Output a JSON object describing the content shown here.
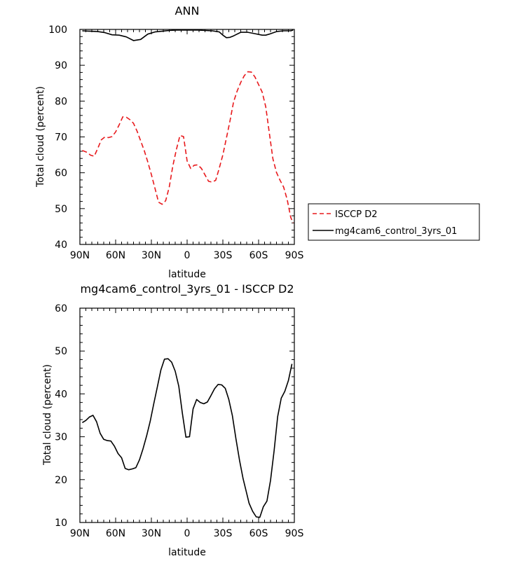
{
  "chart_data": [
    {
      "type": "line",
      "title": "ANN",
      "xlabel": "latitude",
      "ylabel": "Total cloud (percent)",
      "xlim": [
        90,
        -90
      ],
      "ylim": [
        40,
        100
      ],
      "xticks": [
        90,
        60,
        30,
        0,
        -30,
        -60,
        -90
      ],
      "xtick_labels": [
        "90N",
        "60N",
        "30N",
        "0",
        "30S",
        "60S",
        "90S"
      ],
      "yticks": [
        40,
        50,
        60,
        70,
        80,
        90,
        100
      ],
      "ytick_labels": [
        "40",
        "50",
        "60",
        "70",
        "80",
        "90",
        "100"
      ],
      "legend_position": "right",
      "series": [
        {
          "name": "ISCCP D2",
          "color": "#e8191c",
          "dash": "dashed",
          "x": [
            88,
            84,
            81,
            78,
            75,
            72,
            69,
            66,
            63,
            60,
            57,
            54,
            51,
            48,
            45,
            42,
            39,
            36,
            33,
            30,
            27,
            24,
            21,
            18,
            15,
            12,
            9,
            6,
            3,
            0,
            -3,
            -6,
            -9,
            -12,
            -15,
            -18,
            -21,
            -24,
            -27,
            -30,
            -33,
            -36,
            -39,
            -42,
            -45,
            -48,
            -51,
            -54,
            -57,
            -60,
            -63,
            -66,
            -69,
            -72,
            -75,
            -78,
            -81,
            -84,
            -87,
            -89
          ],
          "y": [
            66.2,
            65.7,
            64.9,
            64.6,
            66.8,
            69.2,
            70.0,
            69.8,
            70.1,
            71.4,
            73.4,
            75.6,
            75.5,
            74.8,
            73.8,
            71.6,
            68.9,
            66.2,
            63.0,
            59.5,
            55.7,
            51.8,
            51.2,
            52.2,
            56.0,
            61.9,
            66.5,
            70.4,
            70.1,
            63.3,
            61.2,
            62.1,
            62.2,
            61.2,
            59.4,
            57.6,
            57.4,
            57.9,
            61.3,
            65.0,
            69.7,
            74.5,
            79.8,
            82.8,
            85.2,
            87.1,
            88.2,
            88.1,
            86.7,
            84.6,
            82.5,
            78.4,
            71.1,
            63.9,
            60.1,
            57.9,
            56.0,
            52.5,
            47.5,
            46.0
          ]
        },
        {
          "name": "mg4cam6_control_3yrs_01",
          "color": "#000000",
          "dash": "solid",
          "x": [
            88,
            81,
            75,
            69,
            63,
            57,
            51,
            45,
            39,
            33,
            27,
            21,
            15,
            9,
            3,
            -3,
            -9,
            -15,
            -21,
            -27,
            -30,
            -33,
            -36,
            -39,
            -45,
            -51,
            -57,
            -63,
            -66,
            -69,
            -75,
            -81,
            -87,
            -89
          ],
          "y": [
            99.6,
            99.5,
            99.4,
            99.1,
            98.5,
            98.4,
            97.9,
            96.9,
            97.2,
            98.7,
            99.3,
            99.5,
            99.7,
            99.8,
            99.8,
            99.8,
            99.8,
            99.7,
            99.6,
            99.3,
            98.4,
            97.7,
            97.8,
            98.2,
            99.2,
            99.2,
            98.8,
            98.4,
            98.4,
            98.7,
            99.4,
            99.6,
            99.6,
            99.8
          ]
        }
      ]
    },
    {
      "type": "line",
      "title": "mg4cam6_control_3yrs_01 - ISCCP D2",
      "xlabel": "latitude",
      "ylabel": "Total cloud (percent)",
      "xlim": [
        90,
        -90
      ],
      "ylim": [
        10,
        60
      ],
      "xticks": [
        90,
        60,
        30,
        0,
        -30,
        -60,
        -90
      ],
      "xtick_labels": [
        "90N",
        "60N",
        "30N",
        "0",
        "30S",
        "60S",
        "90S"
      ],
      "yticks": [
        10,
        20,
        30,
        40,
        50,
        60
      ],
      "ytick_labels": [
        "10",
        "20",
        "30",
        "40",
        "50",
        "60"
      ],
      "series": [
        {
          "color": "#000000",
          "dash": "solid",
          "x": [
            88,
            85,
            82,
            79,
            76,
            73,
            70,
            67,
            64,
            61,
            58,
            55,
            52,
            49,
            46,
            43,
            40,
            37,
            34,
            31,
            28,
            25,
            22,
            19,
            16,
            13,
            10,
            7,
            4,
            1,
            -2,
            -5,
            -8,
            -11,
            -14,
            -17,
            -20,
            -23,
            -26,
            -29,
            -32,
            -35,
            -38,
            -41,
            -44,
            -47,
            -50,
            -52,
            -55,
            -58,
            -61,
            -64,
            -67,
            -70,
            -73,
            -76,
            -79,
            -82,
            -85,
            -88
          ],
          "y": [
            33.3,
            33.8,
            34.6,
            35.0,
            33.5,
            30.8,
            29.4,
            29.1,
            29.0,
            27.8,
            26.1,
            25.1,
            22.6,
            22.3,
            22.5,
            22.8,
            24.6,
            27.2,
            30.2,
            33.6,
            37.7,
            41.6,
            45.6,
            48.1,
            48.2,
            47.4,
            45.3,
            41.8,
            35.5,
            29.9,
            30.0,
            36.5,
            38.7,
            38.0,
            37.7,
            38.1,
            39.6,
            41.2,
            42.2,
            42.1,
            41.3,
            38.7,
            34.9,
            29.5,
            24.5,
            20.2,
            16.8,
            14.5,
            12.6,
            11.3,
            11.2,
            13.7,
            15.0,
            19.8,
            26.7,
            34.7,
            39.0,
            40.6,
            43.1,
            47.0
          ]
        }
      ]
    }
  ]
}
